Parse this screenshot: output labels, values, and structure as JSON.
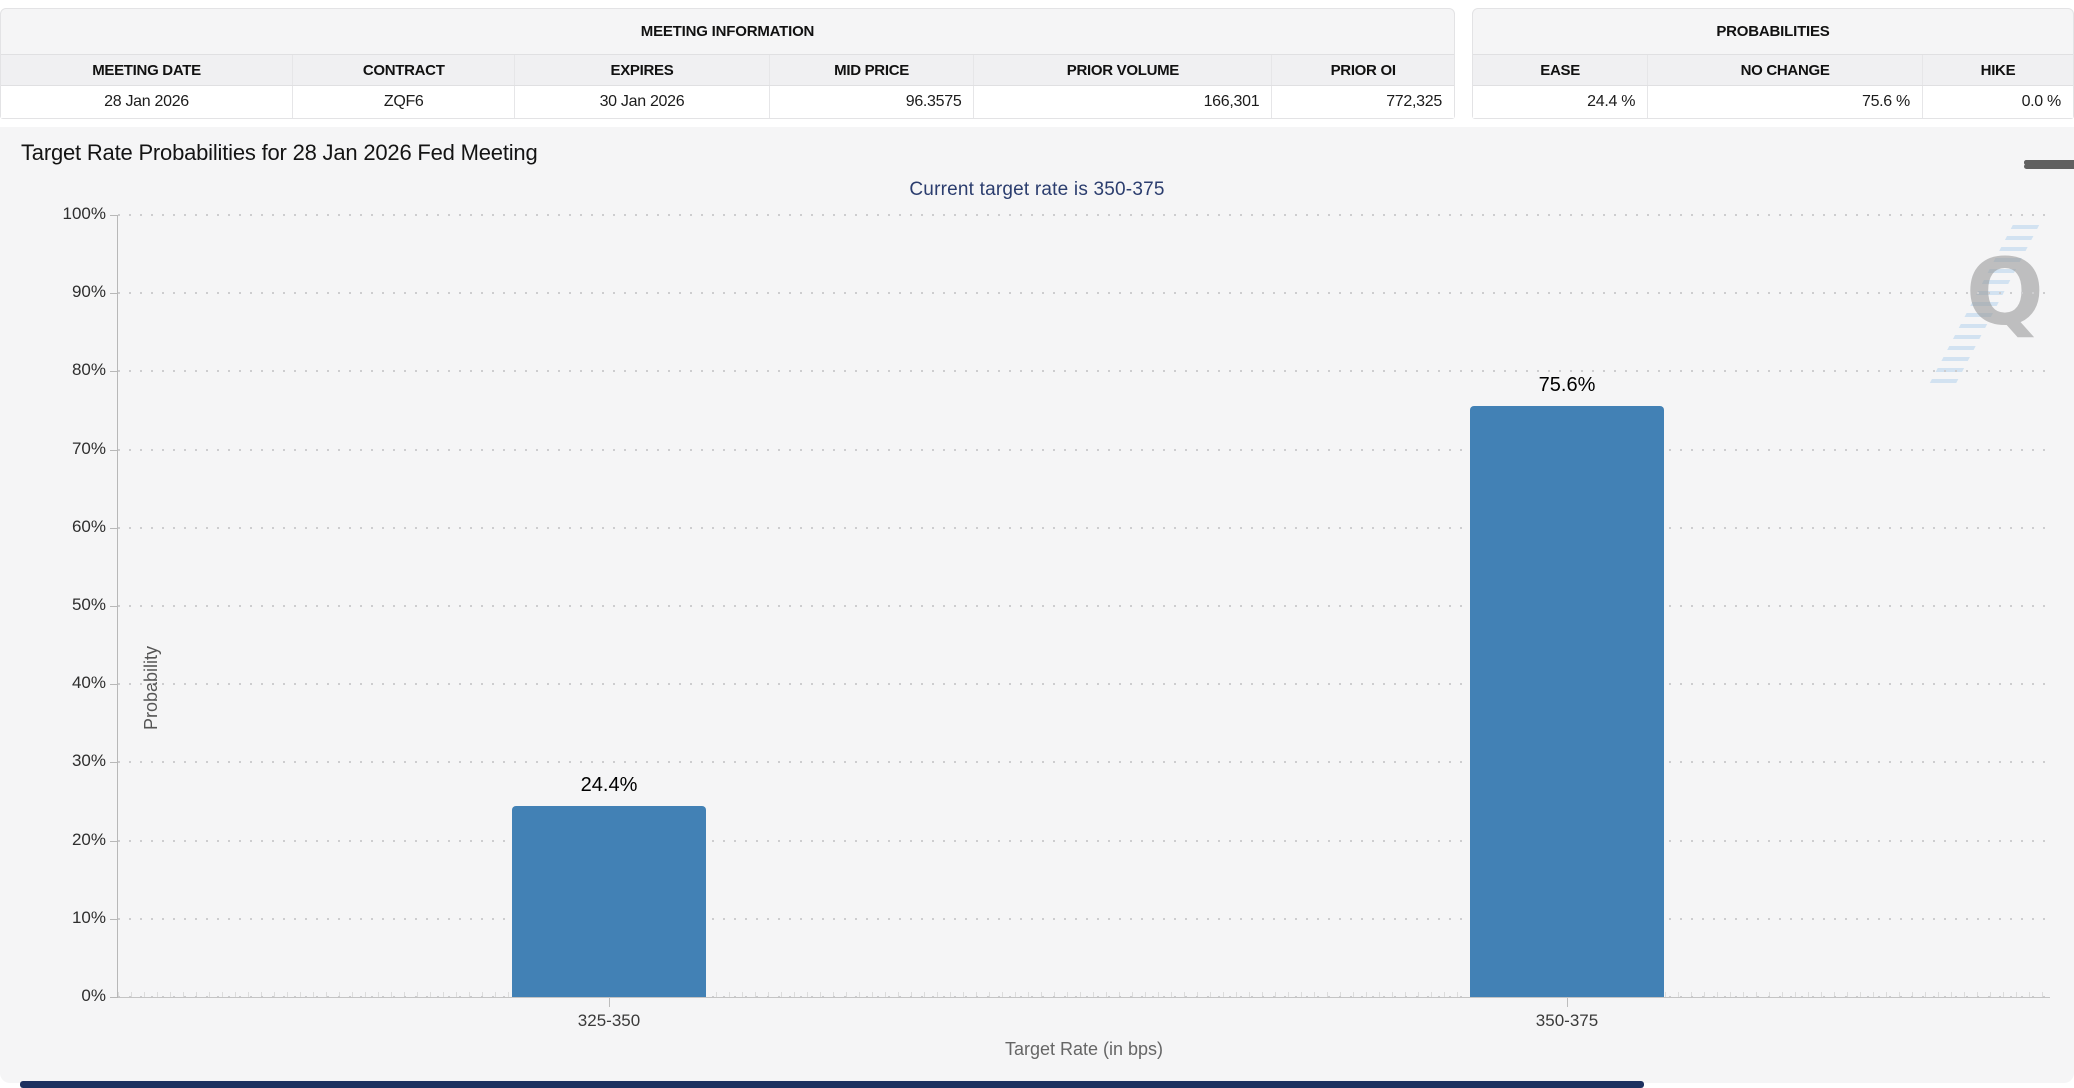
{
  "meeting_info": {
    "title": "MEETING INFORMATION",
    "columns": [
      "MEETING DATE",
      "CONTRACT",
      "EXPIRES",
      "MID PRICE",
      "PRIOR VOLUME",
      "PRIOR OI"
    ],
    "row": {
      "meeting_date": "28 Jan 2026",
      "contract": "ZQF6",
      "expires": "30 Jan 2026",
      "mid_price": "96.3575",
      "prior_volume": "166,301",
      "prior_oi": "772,325"
    }
  },
  "probabilities": {
    "title": "PROBABILITIES",
    "columns": [
      "EASE",
      "NO CHANGE",
      "HIKE"
    ],
    "row": {
      "ease": "24.4 %",
      "no_change": "75.6 %",
      "hike": "0.0 %"
    }
  },
  "chart": {
    "title": "Target Rate Probabilities for 28 Jan 2026 Fed Meeting",
    "subtitle": "Current target rate is 350-375",
    "menu_icon": "hamburger-icon",
    "watermark_letter": "Q"
  },
  "chart_data": {
    "type": "bar",
    "title": "Target Rate Probabilities for 28 Jan 2026 Fed Meeting",
    "subtitle": "Current target rate is 350-375",
    "categories": [
      "325-350",
      "350-375"
    ],
    "values": [
      24.4,
      75.6
    ],
    "bar_labels": [
      "24.4%",
      "75.6%"
    ],
    "xlabel": "Target Rate (in bps)",
    "ylabel": "Probability",
    "ylim": [
      0,
      100
    ],
    "ytick_step": 10,
    "ytick_suffix": "%",
    "grid": "horizontal-dotted",
    "legend": "none",
    "bar_color": "#4281b5"
  },
  "colors": {
    "bar": "#4281b5",
    "subtitle_text": "#2b3d6e",
    "panel_bg": "#f5f5f6",
    "bottom_strip": "#1d3160"
  }
}
